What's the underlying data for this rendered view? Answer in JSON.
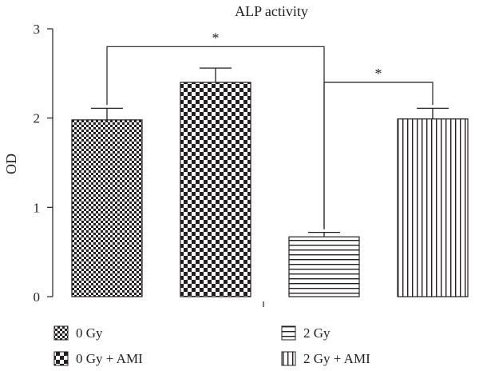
{
  "chart_data": {
    "type": "bar",
    "title": "ALP activity",
    "xlabel": "",
    "ylabel": "OD",
    "ylim": [
      0,
      3
    ],
    "yticks": [
      0,
      1,
      2,
      3
    ],
    "grid": false,
    "legend_position": "bottom",
    "categories": [
      "0 Gy",
      "0 Gy + AMI",
      "2 Gy",
      "2 Gy + AMI"
    ],
    "values": [
      1.98,
      2.4,
      0.67,
      1.99
    ],
    "errors": [
      0.13,
      0.16,
      0.05,
      0.12
    ],
    "patterns": [
      "small-checker",
      "large-checker",
      "horizontal-lines",
      "vertical-lines"
    ],
    "significance": [
      {
        "from": "0 Gy",
        "to": "2 Gy",
        "label": "*",
        "y": 2.8
      },
      {
        "from": "2 Gy",
        "to": "2 Gy + AMI",
        "label": "*",
        "y": 2.4
      }
    ]
  }
}
